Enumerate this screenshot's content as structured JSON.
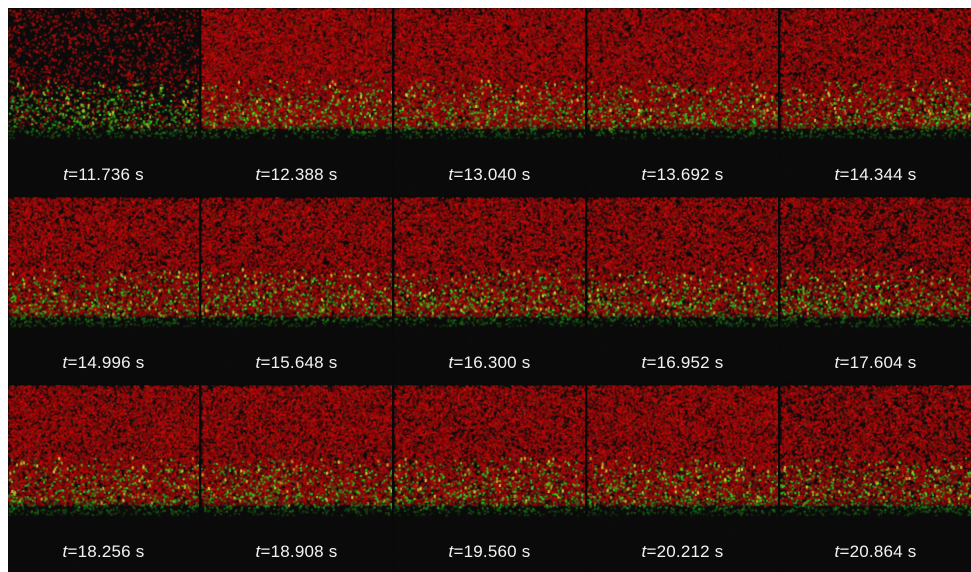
{
  "figure": {
    "colors": {
      "background": "#090909",
      "red_channel": "#b01818",
      "green_channel": "#3cc43c",
      "caption_text": "#f2f2f2"
    },
    "frames": [
      {
        "var": "t",
        "rest": "=11.736 s",
        "time_s": 11.736,
        "red_level": 0.15
      },
      {
        "var": "t",
        "rest": "=12.388 s",
        "time_s": 12.388,
        "red_level": 0.95
      },
      {
        "var": "t",
        "rest": "=13.040 s",
        "time_s": 13.04,
        "red_level": 0.9
      },
      {
        "var": "t",
        "rest": "=13.692 s",
        "time_s": 13.692,
        "red_level": 0.85
      },
      {
        "var": "t",
        "rest": "=14.344 s",
        "time_s": 14.344,
        "red_level": 0.75
      },
      {
        "var": "t",
        "rest": "=14.996 s",
        "time_s": 14.996,
        "red_level": 0.75
      },
      {
        "var": "t",
        "rest": "=15.648 s",
        "time_s": 15.648,
        "red_level": 0.75
      },
      {
        "var": "t",
        "rest": "=16.300 s",
        "time_s": 16.3,
        "red_level": 0.75
      },
      {
        "var": "t",
        "rest": "=16.952 s",
        "time_s": 16.952,
        "red_level": 0.7
      },
      {
        "var": "t",
        "rest": "=17.604 s",
        "time_s": 17.604,
        "red_level": 0.6
      },
      {
        "var": "t",
        "rest": "=18.256 s",
        "time_s": 18.256,
        "red_level": 0.8
      },
      {
        "var": "t",
        "rest": "=18.908 s",
        "time_s": 18.908,
        "red_level": 0.8
      },
      {
        "var": "t",
        "rest": "=19.560 s",
        "time_s": 19.56,
        "red_level": 0.75
      },
      {
        "var": "t",
        "rest": "=20.212 s",
        "time_s": 20.212,
        "red_level": 0.8
      },
      {
        "var": "t",
        "rest": "=20.864 s",
        "time_s": 20.864,
        "red_level": 0.65
      }
    ]
  }
}
